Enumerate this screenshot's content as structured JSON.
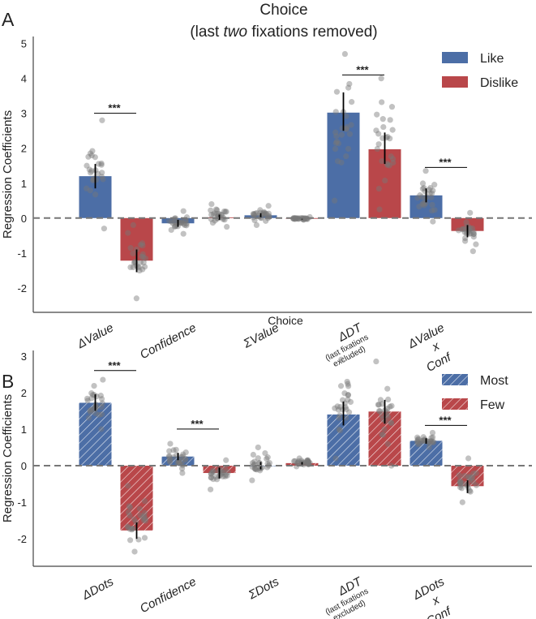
{
  "chart_data": [
    {
      "panel_label": "A",
      "type": "bar",
      "title_line1": "Choice",
      "title_line2_pre": "(last ",
      "title_line2_italic": "two",
      "title_line2_post": " fixations removed)",
      "ylabel": "Regression Coefficients",
      "ylim": [
        -2.7,
        5.2
      ],
      "yticks": [
        -2,
        -1,
        0,
        1,
        2,
        3,
        4,
        5
      ],
      "grid": false,
      "zero_line": "dashed",
      "hatched": false,
      "legend_position": "top-right",
      "categories": [
        {
          "main": "ΔValue",
          "sub": "",
          "lines": []
        },
        {
          "main": "Confidence",
          "sub": "",
          "lines": []
        },
        {
          "main": "ΣValue",
          "sub": "",
          "lines": []
        },
        {
          "main": "ΔDT",
          "sub": "(last fixations",
          "sub2": "excluded)",
          "lines": []
        },
        {
          "main": "ΔValue",
          "sub": "",
          "lines": [
            "x",
            "Conf"
          ]
        }
      ],
      "series": [
        {
          "name": "Like",
          "color": "#4c6ea6",
          "values": [
            1.2,
            -0.15,
            0.08,
            3.02,
            0.65
          ],
          "ci": [
            [
              0.85,
              1.55
            ],
            [
              -0.25,
              -0.05
            ],
            [
              0.02,
              0.14
            ],
            [
              2.5,
              3.6
            ],
            [
              0.45,
              0.85
            ]
          ],
          "points_range": [
            [
              -0.3,
              2.8
            ],
            [
              -0.45,
              0.2
            ],
            [
              -0.2,
              0.35
            ],
            [
              0.5,
              4.7
            ],
            [
              -0.1,
              1.35
            ]
          ]
        },
        {
          "name": "Dislike",
          "color": "#b9474a",
          "values": [
            -1.22,
            0.02,
            -0.02,
            1.97,
            -0.37
          ],
          "ci": [
            [
              -1.55,
              -0.9
            ],
            [
              -0.05,
              0.1
            ],
            [
              -0.04,
              0.0
            ],
            [
              1.55,
              2.45
            ],
            [
              -0.55,
              -0.2
            ]
          ],
          "points_range": [
            [
              -2.3,
              -0.2
            ],
            [
              -0.25,
              0.4
            ],
            [
              -0.05,
              0.03
            ],
            [
              0.25,
              4.0
            ],
            [
              -0.95,
              0.15
            ]
          ]
        }
      ],
      "significance": [
        {
          "category_index": 0,
          "label": "***",
          "y": 3.0
        },
        {
          "category_index": 3,
          "label": "***",
          "y": 4.1
        },
        {
          "category_index": 4,
          "label": "***",
          "y": 1.45
        }
      ]
    },
    {
      "panel_label": "B",
      "type": "bar",
      "title_line1": "Choice",
      "ylabel": "Regression Coefficients",
      "ylim": [
        -2.75,
        3.15
      ],
      "yticks": [
        -2,
        -1,
        0,
        1,
        2,
        3
      ],
      "grid": false,
      "zero_line": "dashed",
      "hatched": true,
      "legend_position": "top-right",
      "categories": [
        {
          "main": "ΔDots",
          "sub": "",
          "lines": []
        },
        {
          "main": "Confidence",
          "sub": "",
          "lines": []
        },
        {
          "main": "ΣDots",
          "sub": "",
          "lines": []
        },
        {
          "main": "ΔDT",
          "sub": "(last fixations",
          "sub2": "excluded)",
          "lines": []
        },
        {
          "main": "ΔDots",
          "sub": "",
          "lines": [
            "x",
            "Conf"
          ]
        }
      ],
      "series": [
        {
          "name": "Most",
          "color": "#4c6ea6",
          "values": [
            1.72,
            0.25,
            0.0,
            1.4,
            0.68
          ],
          "ci": [
            [
              1.5,
              1.95
            ],
            [
              0.15,
              0.35
            ],
            [
              -0.1,
              0.1
            ],
            [
              1.1,
              1.75
            ],
            [
              0.6,
              0.75
            ]
          ],
          "points_range": [
            [
              1.0,
              2.35
            ],
            [
              -0.2,
              0.6
            ],
            [
              -0.4,
              0.5
            ],
            [
              0.2,
              2.9
            ],
            [
              0.5,
              0.9
            ]
          ]
        },
        {
          "name": "Few",
          "color": "#b9474a",
          "values": [
            -1.77,
            -0.2,
            0.07,
            1.48,
            -0.56
          ],
          "ci": [
            [
              -2.0,
              -1.55
            ],
            [
              -0.35,
              -0.05
            ],
            [
              0.03,
              0.1
            ],
            [
              1.15,
              1.8
            ],
            [
              -0.75,
              -0.4
            ]
          ],
          "points_range": [
            [
              -2.35,
              -0.55
            ],
            [
              -0.65,
              0.15
            ],
            [
              -0.02,
              0.2
            ],
            [
              0.0,
              2.85
            ],
            [
              -1.0,
              0.2
            ]
          ]
        }
      ],
      "significance": [
        {
          "category_index": 0,
          "label": "***",
          "y": 2.6
        },
        {
          "category_index": 1,
          "label": "***",
          "y": 1.0
        },
        {
          "category_index": 4,
          "label": "***",
          "y": 1.1
        }
      ]
    }
  ]
}
